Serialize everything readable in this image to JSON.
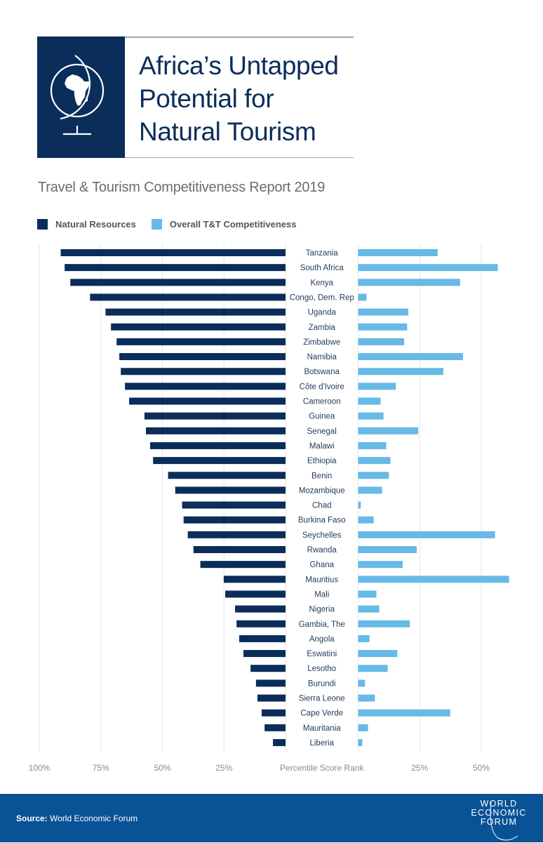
{
  "header": {
    "title_lines": [
      "Africa’s Untapped",
      "Potential for",
      "Natural Tourism"
    ],
    "icon": "globe-africa-icon"
  },
  "subtitle": "Travel & Tourism Competitiveness Report 2019",
  "legend": [
    {
      "label": "Natural Resources",
      "color": "#0b2d5a"
    },
    {
      "label": "Overall T&T Competitiveness",
      "color": "#67b9e6"
    }
  ],
  "footer": {
    "source_label": "Source:",
    "source_text": "World Economic Forum",
    "logo_lines": [
      "WORLD",
      "ECONOMIC",
      "FORUM"
    ],
    "background": "#0a5296"
  },
  "chart_data": {
    "type": "bar",
    "orientation": "horizontal-diverging",
    "title": "Africa’s Untapped Potential for Natural Tourism",
    "subtitle": "Travel & Tourism Competitiveness Report 2019",
    "xlabel": "Percentile Score Rank",
    "left_ticks": [
      "100%",
      "75%",
      "50%",
      "25%"
    ],
    "right_ticks": [
      "25%",
      "50%"
    ],
    "left_xlim": [
      0,
      100
    ],
    "right_xlim": [
      0,
      60
    ],
    "grid": true,
    "legend_position": "top-left",
    "categories": [
      "Tanzania",
      "South Africa",
      "Kenya",
      "Congo, Dem. Rep",
      "Uganda",
      "Zambia",
      "Zimbabwe",
      "Namibia",
      "Botswana",
      "Côte d'Ivoire",
      "Cameroon",
      "Guinea",
      "Senegal",
      "Malawi",
      "Ethiopia",
      "Benin",
      "Mozambique",
      "Chad",
      "Burkina Faso",
      "Seychelles",
      "Rwanda",
      "Ghana",
      "Mauritius",
      "Mali",
      "Nigeria",
      "Gambia, The",
      "Angola",
      "Eswatini",
      "Lesotho",
      "Burundi",
      "Sierra Leone",
      "Cape Verde",
      "Mauritania",
      "Liberia"
    ],
    "series": [
      {
        "name": "Natural Resources",
        "side": "left",
        "color": "#0b2d5a",
        "values": [
          91.3,
          89.7,
          87.4,
          79.4,
          73.1,
          70.9,
          68.6,
          67.5,
          66.9,
          65.2,
          63.5,
          57.3,
          56.7,
          55.0,
          53.8,
          47.7,
          44.8,
          42.0,
          41.4,
          39.7,
          37.4,
          34.6,
          25.1,
          24.5,
          20.5,
          19.9,
          18.8,
          17.1,
          14.2,
          12.0,
          11.4,
          9.7,
          8.5,
          5.1
        ]
      },
      {
        "name": "Overall T&T Competitiveness",
        "side": "right",
        "color": "#67b9e6",
        "values": [
          32.3,
          56.7,
          41.4,
          3.4,
          20.4,
          19.9,
          18.7,
          42.6,
          34.6,
          15.3,
          9.1,
          10.3,
          24.4,
          11.4,
          13.1,
          12.5,
          9.7,
          1.1,
          6.3,
          55.6,
          23.8,
          18.1,
          61.3,
          7.4,
          8.6,
          21.0,
          4.6,
          15.9,
          12.0,
          2.8,
          6.8,
          37.4,
          4.0,
          1.7
        ]
      }
    ]
  }
}
